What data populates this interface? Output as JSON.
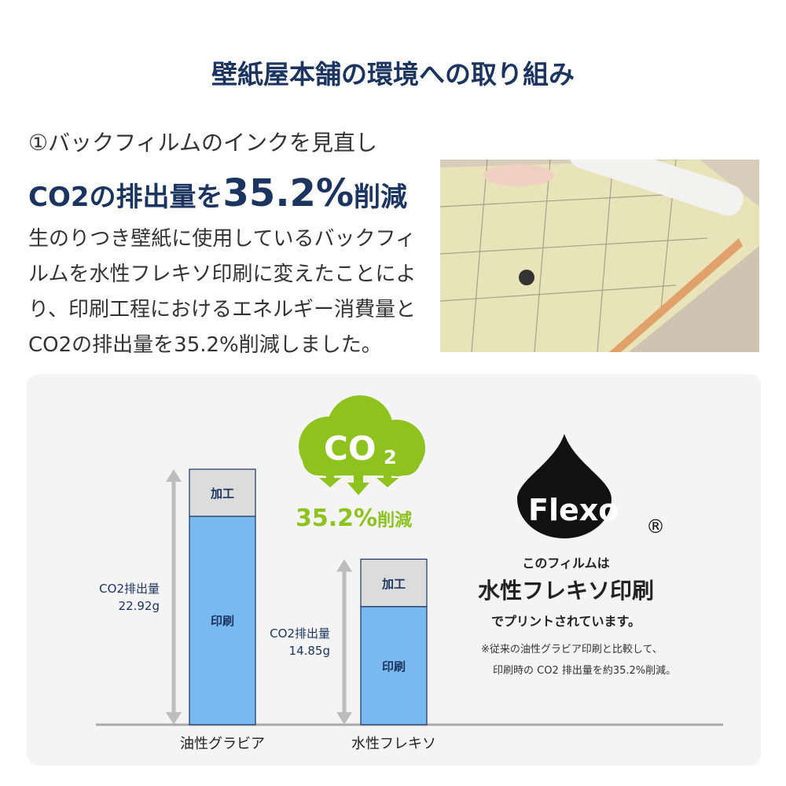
{
  "title": "壁紙屋本舗の環境への取り組み",
  "section": {
    "subtitle": "①バックフィルムのインクを見直し",
    "headline_pre": "CO2の排出量を",
    "headline_big": "35.2%",
    "headline_post": "削減",
    "body": "生のりつき壁紙に使用しているバックフィルムを水性フレキソ印刷に変えたことにより、印刷工程におけるエネルギー消費量とCO2の排出量を35.2%削減しました。"
  },
  "colors": {
    "navy": "#1b3560",
    "green": "#8dc21f",
    "bar_print": "#7ab8f0",
    "bar_process": "#dcdcdc",
    "arrow": "#bdbdbd"
  },
  "co2_badge": {
    "icon": "cloud-co2-icon",
    "text": "CO",
    "subscript": "2",
    "reduction": "35.2%",
    "reduction_suffix": "削減"
  },
  "flexo": {
    "logo": "Flexo",
    "registered": "®",
    "line1": "このフィルムは",
    "line2": "水性フレキソ印刷",
    "line3": "でプリントされています。",
    "note1": "※従来の油性グラビア印刷と比較して、",
    "note2": "印刷時の CO2 排出量を約35.2%削減。"
  },
  "chart_data": {
    "type": "bar",
    "stacked": true,
    "categories": [
      "油性グラビア",
      "水性フレキソ"
    ],
    "series": [
      {
        "name": "印刷",
        "values": [
          18.7,
          10.6
        ]
      },
      {
        "name": "加工",
        "values": [
          4.22,
          4.25
        ]
      }
    ],
    "totals": [
      22.92,
      14.85
    ],
    "total_labels": [
      [
        "CO2排出量",
        "22.92g"
      ],
      [
        "CO2排出量",
        "14.85g"
      ]
    ],
    "ylim": [
      0,
      22.92
    ]
  }
}
